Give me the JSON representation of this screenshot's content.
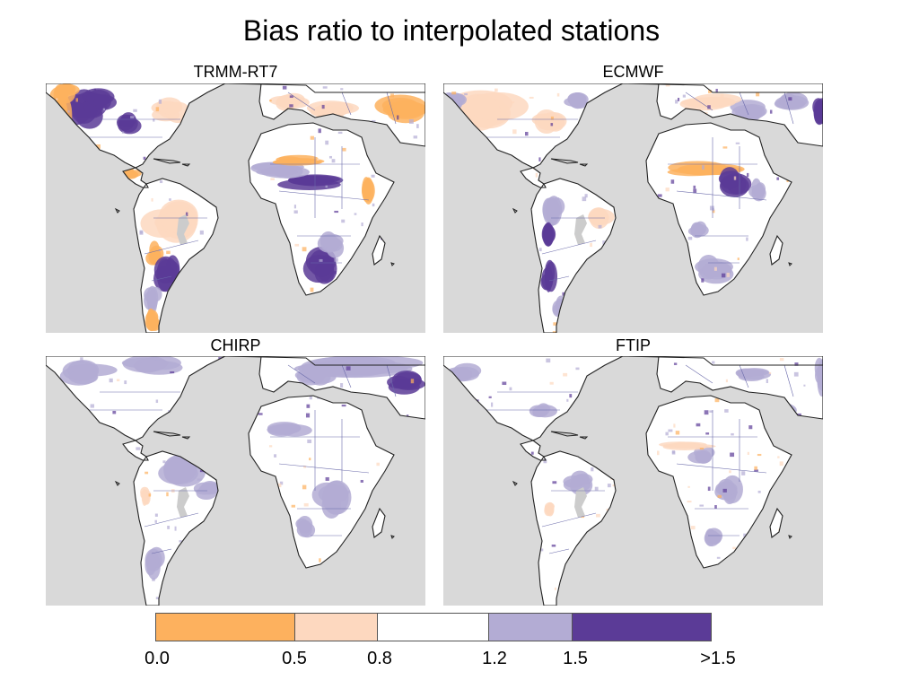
{
  "title": "Bias ratio to interpolated stations",
  "panels": [
    {
      "label": "TRMM-RT7"
    },
    {
      "label": "ECMWF"
    },
    {
      "label": "CHIRP"
    },
    {
      "label": "FTIP"
    }
  ],
  "legend": {
    "classes": [
      {
        "range": "0.0 - 0.5",
        "color": "#fdb15e"
      },
      {
        "range": "0.5 - 0.8",
        "color": "#fdd8bf"
      },
      {
        "range": "0.8 - 1.2",
        "color": "#ffffff"
      },
      {
        "range": "1.2 - 1.5",
        "color": "#b3acd4"
      },
      {
        "range": ">1.5",
        "color": "#5b3b97"
      }
    ],
    "tick_labels": [
      "0.0",
      "0.5",
      "0.8",
      "1.2",
      "1.5",
      ">1.5"
    ]
  },
  "colors": {
    "ocean": "#d9d9d9",
    "no_data": "#cccccc",
    "coastline": "#222222",
    "borders": "#6a6aaa"
  }
}
